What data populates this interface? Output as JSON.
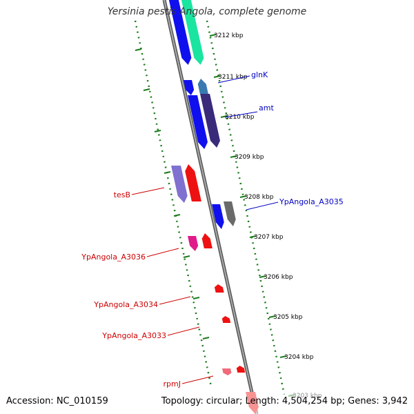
{
  "title": "Yersinia pestis Angola, complete genome",
  "footer": {
    "accession": "Accession: NC_010159",
    "topology": "Topology: circular; Length: 4,504,254 bp; Genes: 3,942"
  },
  "colors": {
    "backbone_dark": "#555555",
    "backbone_light": "#aaaaaa",
    "tick": "#1a7a1a",
    "blue_gene": "#1010ee",
    "dark_gene": "#3a2a7a",
    "teal_gene": "#3a7ab0",
    "gray_gene": "#6a6a6a",
    "green_gene": "#19e5a0",
    "lavender_gene": "#8070d0",
    "red_gene": "#ee1111",
    "magenta_gene": "#e01a8a",
    "pink_gene": "#f06a7a",
    "label_blue": "#0000c0",
    "label_red": "#cc0000"
  },
  "scale_ticks": [
    {
      "label": "3212 kbp"
    },
    {
      "label": "3211 kbp"
    },
    {
      "label": "3210 kbp"
    },
    {
      "label": "3209 kbp"
    },
    {
      "label": "3208 kbp"
    },
    {
      "label": "3207 kbp"
    },
    {
      "label": "3206 kbp"
    },
    {
      "label": "3205 kbp"
    },
    {
      "label": "3204 kbp"
    },
    {
      "label": "3203 kbp"
    }
  ],
  "gene_labels": {
    "right": [
      "glnK",
      "amt",
      "YpAngola_A3035"
    ],
    "left": [
      "tesB",
      "YpAngola_A3036",
      "YpAngola_A3034",
      "YpAngola_A3033",
      "rpmJ"
    ]
  }
}
